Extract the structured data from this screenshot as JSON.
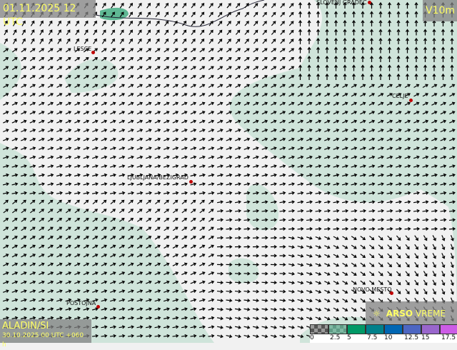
{
  "header": {
    "valid_time": "01.11.2025 12 UTC",
    "variable": "V10m"
  },
  "model": {
    "name": "ALADIN/SI",
    "run": "30.10.2025 00 UTC +060 h"
  },
  "brand": {
    "name_bold": "ARSO",
    "name_light": " VREME",
    "icon": "sun-icon"
  },
  "cities": [
    {
      "name": "SLOVENJ GRADEC"
    },
    {
      "name": "LESCE"
    },
    {
      "name": "CELJE"
    },
    {
      "name": "LJUBLJANA/BEŽIGRAD"
    },
    {
      "name": "POSTOJNA"
    },
    {
      "name": "NOVO MESTO"
    }
  ],
  "legend": {
    "labels": [
      "0",
      "2.5",
      "5",
      "7.5",
      "10",
      "12.5",
      "15",
      "17.5"
    ],
    "colors": [
      "#555555",
      "#5f9c86",
      "#009966",
      "#00808a",
      "#0066b3",
      "#4d66c2",
      "#9966cc",
      "#cc5ce6"
    ]
  },
  "colors": {
    "calm": "#f1f1f1",
    "light": "#cfe4da",
    "text": "#ffff66",
    "marker": "#c00000"
  }
}
